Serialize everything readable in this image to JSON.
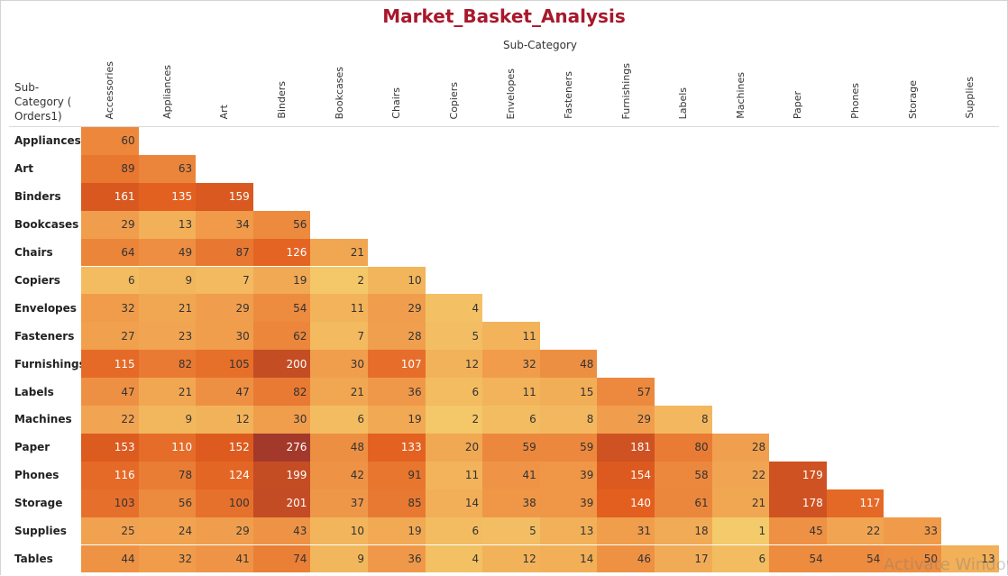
{
  "chart_data": {
    "type": "heatmap",
    "title": "Market_Basket_Analysis",
    "xlabel": "Sub-Category",
    "ylabel": "Sub-Category ( Orders1)",
    "columns": [
      "Accessories",
      "Appliances",
      "Art",
      "Binders",
      "Bookcases",
      "Chairs",
      "Copiers",
      "Envelopes",
      "Fasteners",
      "Furnishings",
      "Labels",
      "Machines",
      "Paper",
      "Phones",
      "Storage",
      "Supplies"
    ],
    "rows": [
      {
        "label": "Appliances",
        "values": [
          60
        ]
      },
      {
        "label": "Art",
        "values": [
          89,
          63
        ]
      },
      {
        "label": "Binders",
        "values": [
          161,
          135,
          159
        ]
      },
      {
        "label": "Bookcases",
        "values": [
          29,
          13,
          34,
          56
        ]
      },
      {
        "label": "Chairs",
        "values": [
          64,
          49,
          87,
          126,
          21
        ]
      },
      {
        "label": "Copiers",
        "values": [
          6,
          9,
          7,
          19,
          2,
          10
        ]
      },
      {
        "label": "Envelopes",
        "values": [
          32,
          21,
          29,
          54,
          11,
          29,
          4
        ]
      },
      {
        "label": "Fasteners",
        "values": [
          27,
          23,
          30,
          62,
          7,
          28,
          5,
          11
        ]
      },
      {
        "label": "Furnishings",
        "values": [
          115,
          82,
          105,
          200,
          30,
          107,
          12,
          32,
          48
        ]
      },
      {
        "label": "Labels",
        "values": [
          47,
          21,
          47,
          82,
          21,
          36,
          6,
          11,
          15,
          57
        ]
      },
      {
        "label": "Machines",
        "values": [
          22,
          9,
          12,
          30,
          6,
          19,
          2,
          6,
          8,
          29,
          8
        ]
      },
      {
        "label": "Paper",
        "values": [
          153,
          110,
          152,
          276,
          48,
          133,
          20,
          59,
          59,
          181,
          80,
          28
        ]
      },
      {
        "label": "Phones",
        "values": [
          116,
          78,
          124,
          199,
          42,
          91,
          11,
          41,
          39,
          154,
          58,
          22,
          179
        ]
      },
      {
        "label": "Storage",
        "values": [
          103,
          56,
          100,
          201,
          37,
          85,
          14,
          38,
          39,
          140,
          61,
          21,
          178,
          117
        ]
      },
      {
        "label": "Supplies",
        "values": [
          25,
          24,
          29,
          43,
          10,
          19,
          6,
          5,
          13,
          31,
          18,
          1,
          45,
          22,
          33
        ]
      },
      {
        "label": "Tables",
        "values": [
          44,
          32,
          41,
          74,
          9,
          36,
          4,
          12,
          14,
          46,
          17,
          6,
          54,
          54,
          50,
          13
        ]
      }
    ],
    "color_scale": {
      "low": "#f5d572",
      "mid": "#f09a4a",
      "high": "#e25e1e",
      "max": "#a3392b"
    },
    "grid": false
  },
  "watermark": "Activate Windows"
}
